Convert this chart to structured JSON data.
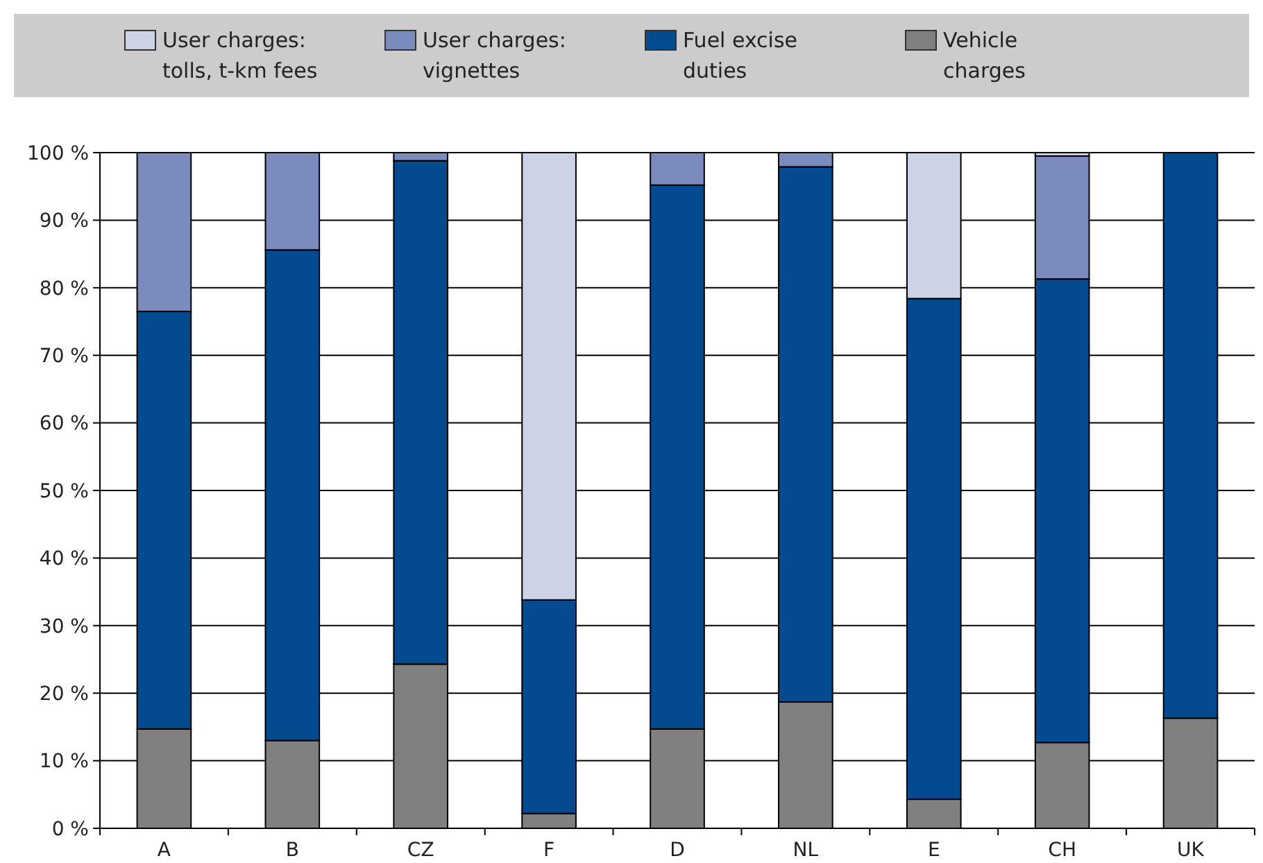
{
  "chart_data": {
    "type": "bar",
    "stacked": true,
    "categories": [
      "A",
      "B",
      "CZ",
      "F",
      "D",
      "NL",
      "E",
      "CH",
      "UK"
    ],
    "series": [
      {
        "name": "Vehicle charges",
        "color": "#808080",
        "values": [
          14.7,
          13.0,
          24.3,
          2.2,
          14.7,
          18.7,
          4.3,
          12.7,
          16.3
        ]
      },
      {
        "name": "Fuel excise duties",
        "color": "#034a8f",
        "values": [
          61.8,
          72.6,
          74.5,
          31.6,
          80.5,
          79.2,
          74.1,
          68.6,
          83.7
        ]
      },
      {
        "name": "User charges: vignettes",
        "color": "#7b8bbd",
        "values": [
          23.5,
          14.4,
          1.2,
          0,
          4.8,
          2.1,
          0,
          18.2,
          0
        ]
      },
      {
        "name": "User charges: tolls, t-km fees",
        "color": "#ccd3e6",
        "values": [
          0,
          0,
          0,
          66.2,
          0,
          0,
          21.6,
          0.5,
          0
        ]
      }
    ],
    "ylim": [
      0,
      100
    ],
    "yticks": [
      {
        "value": 0,
        "label": "0 %"
      },
      {
        "value": 10,
        "label": "10 %"
      },
      {
        "value": 20,
        "label": "20 %"
      },
      {
        "value": 30,
        "label": "30 %"
      },
      {
        "value": 40,
        "label": "40 %"
      },
      {
        "value": 50,
        "label": "50 %"
      },
      {
        "value": 60,
        "label": "60 %"
      },
      {
        "value": 70,
        "label": "70 %"
      },
      {
        "value": 80,
        "label": "80 %"
      },
      {
        "value": 90,
        "label": "90 %"
      },
      {
        "value": 100,
        "label": "100 %"
      }
    ],
    "grid": "y",
    "legend": "top"
  }
}
